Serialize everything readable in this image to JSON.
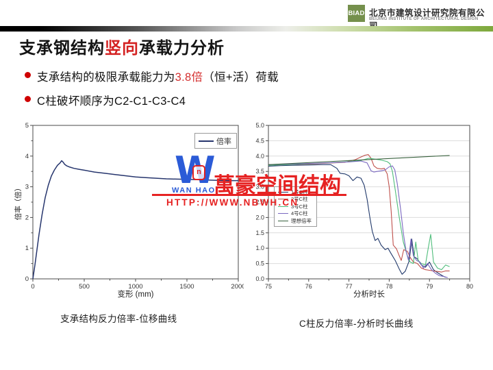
{
  "header": {
    "logo_text": "BIAD",
    "company_zh": "北京市建筑设计研究院有限公司",
    "company_en": "BEIJING INSTITUTE OF ARCHITECTURAL DESIGN"
  },
  "title": {
    "pre": "支承钢结构",
    "highlight": "竖向",
    "post": "承载力分析"
  },
  "bullets": [
    {
      "pre": "支承结构的极限承载能力为",
      "highlight": "3.8倍",
      "post": "（恒+活）荷载"
    },
    {
      "pre": "C柱破坏顺序为C2-C1-C3-C4",
      "highlight": "",
      "post": ""
    }
  ],
  "captions": {
    "left": "支承结构反力倍率-位移曲线",
    "right": "C柱反力倍率-分析时长曲线"
  },
  "watermark": {
    "logo_letter": "W",
    "emblem_glyph": "n",
    "brand_en": "WAN HAO",
    "brand_zh": "萬豪空间结构",
    "url": "HTTP://WWW.NBWH.CN",
    "red": "#e62222",
    "blue": "#2b5bd7"
  },
  "colors": {
    "accent_red": "#cf0000",
    "logo_green": "#75904c",
    "grid": "#dcdcdc",
    "axis": "#4a4a4a"
  },
  "chart_data": [
    {
      "type": "line",
      "title": "",
      "xlabel": "变形 (mm)",
      "ylabel": "倍率（倍）",
      "xlim": [
        0,
        2000
      ],
      "ylim": [
        0,
        5
      ],
      "xticks": [
        0,
        500,
        1000,
        1500,
        2000
      ],
      "yticks": [
        0,
        1,
        2,
        3,
        4,
        5
      ],
      "xminor": [
        250,
        750,
        1250,
        1750
      ],
      "yminor": [
        0.5,
        1.5,
        2.5,
        3.5,
        4.5
      ],
      "grid": false,
      "legend_position": "top-right",
      "series": [
        {
          "name": "倍率",
          "color": "#26356d",
          "x": [
            0,
            20,
            40,
            60,
            90,
            120,
            150,
            180,
            210,
            240,
            265,
            280,
            295,
            310,
            330,
            360,
            400,
            450,
            500,
            600,
            700,
            800,
            900,
            1000,
            1100,
            1200,
            1300,
            1400,
            1500,
            1600,
            1700,
            1800,
            1900,
            2000
          ],
          "y": [
            0,
            0.45,
            0.95,
            1.45,
            2.1,
            2.65,
            3.05,
            3.35,
            3.55,
            3.7,
            3.78,
            3.85,
            3.8,
            3.73,
            3.68,
            3.64,
            3.6,
            3.57,
            3.54,
            3.48,
            3.44,
            3.4,
            3.36,
            3.32,
            3.3,
            3.28,
            3.26,
            3.25,
            3.24,
            3.23,
            3.22,
            3.21,
            3.2,
            3.2
          ]
        }
      ]
    },
    {
      "type": "line",
      "title": "",
      "xlabel": "分析时长",
      "ylabel": "",
      "xlim": [
        75,
        80
      ],
      "ylim": [
        0,
        5
      ],
      "xticks": [
        75,
        76,
        77,
        78,
        79,
        80
      ],
      "yticks": [
        0,
        0.5,
        1,
        1.5,
        2,
        2.5,
        3,
        3.5,
        4,
        4.5,
        5
      ],
      "ytick_labels": [
        "0.0",
        "0.5",
        "1.0",
        "1.5",
        "2.0",
        "2.5",
        "3.0",
        "3.5",
        "4.0",
        "4.5",
        "5.0"
      ],
      "xminor": [
        75.5,
        76.5,
        77.5,
        78.5,
        79.5
      ],
      "yminor": [],
      "grid": true,
      "legend_position": "mid-left",
      "series": [
        {
          "name": "1号C柱",
          "color": "#20386a",
          "x": [
            75,
            75.3,
            75.6,
            76,
            76.3,
            76.55,
            76.7,
            76.78,
            76.9,
            77,
            77.1,
            77.2,
            77.3,
            77.38,
            77.45,
            77.52,
            77.58,
            77.65,
            77.72,
            77.8,
            77.9,
            77.97,
            78.05,
            78.15,
            78.25,
            78.32,
            78.4,
            78.5,
            78.56,
            78.62,
            78.7,
            78.8,
            78.9,
            79,
            79.1,
            79.2,
            79.3,
            79.4
          ],
          "y": [
            3.67,
            3.69,
            3.7,
            3.71,
            3.72,
            3.72,
            3.6,
            3.44,
            3.42,
            3.36,
            3.2,
            3.32,
            3.28,
            3.05,
            2.6,
            2,
            1.55,
            1.25,
            1.32,
            1.1,
            0.95,
            1,
            0.82,
            0.6,
            0.32,
            0.15,
            0.25,
            0.6,
            1.3,
            0.72,
            0.65,
            0.45,
            0.38,
            0.55,
            0.3,
            0.2,
            0.12,
            0.05
          ]
        },
        {
          "name": "2号C柱",
          "color": "#bf4f4a",
          "x": [
            75,
            75.5,
            76,
            76.5,
            76.9,
            77.15,
            77.3,
            77.4,
            77.48,
            77.55,
            77.62,
            77.7,
            77.8,
            77.88,
            77.95,
            78,
            78.05,
            78.1,
            78.18,
            78.25,
            78.3,
            78.36,
            78.45,
            78.52,
            78.6,
            78.7,
            78.8,
            78.9,
            79,
            79.1,
            79.2,
            79.3,
            79.4,
            79.5
          ],
          "y": [
            3.7,
            3.72,
            3.74,
            3.77,
            3.8,
            3.88,
            3.97,
            4.03,
            4.05,
            3.93,
            3.68,
            3.6,
            3.58,
            3.6,
            3.42,
            3,
            2.2,
            1.1,
            0.98,
            0.75,
            0.6,
            0.95,
            0.9,
            0.7,
            0.55,
            0.5,
            0.35,
            0.3,
            0.28,
            0.26,
            0.24,
            0.22,
            0.26,
            0.26
          ]
        },
        {
          "name": "3号C柱",
          "color": "#4ebd7a",
          "x": [
            75,
            75.5,
            76,
            76.5,
            77,
            77.3,
            77.5,
            77.65,
            77.8,
            77.95,
            78.02,
            78.08,
            78.15,
            78.25,
            78.35,
            78.45,
            78.52,
            78.6,
            78.66,
            78.72,
            78.8,
            78.9,
            78.97,
            79.03,
            79.1,
            79.2,
            79.3,
            79.4,
            79.5
          ],
          "y": [
            3.7,
            3.72,
            3.75,
            3.78,
            3.82,
            3.86,
            3.93,
            3.9,
            3.87,
            3.82,
            3.75,
            3.5,
            2.9,
            2,
            1.2,
            0.75,
            0.55,
            0.5,
            1.2,
            0.6,
            0.5,
            0.45,
            1,
            1.45,
            0.55,
            0.35,
            0.3,
            0.45,
            0.4
          ]
        },
        {
          "name": "4号C柱",
          "color": "#7a68c0",
          "x": [
            75,
            75.5,
            76,
            76.5,
            77,
            77.3,
            77.45,
            77.55,
            77.62,
            77.7,
            77.8,
            77.9,
            78,
            78.08,
            78.14,
            78.2,
            78.28,
            78.35,
            78.42,
            78.48,
            78.54,
            78.6,
            78.68,
            78.76,
            78.85,
            78.95,
            79.05,
            79.15,
            79.25,
            79.35,
            79.45
          ],
          "y": [
            3.72,
            3.74,
            3.76,
            3.78,
            3.81,
            3.84,
            3.78,
            3.52,
            3.48,
            3.5,
            3.52,
            3.55,
            3.65,
            3.68,
            3.55,
            3.1,
            2.3,
            1.5,
            0.9,
            0.6,
            1.3,
            0.75,
            0.6,
            0.55,
            0.35,
            0.5,
            0.3,
            0.18,
            0.1,
            0.08,
            0.04
          ]
        },
        {
          "name": "理想倍率",
          "color": "#37603c",
          "x": [
            75,
            79.5
          ],
          "y": [
            3.72,
            4.02
          ]
        }
      ]
    }
  ]
}
